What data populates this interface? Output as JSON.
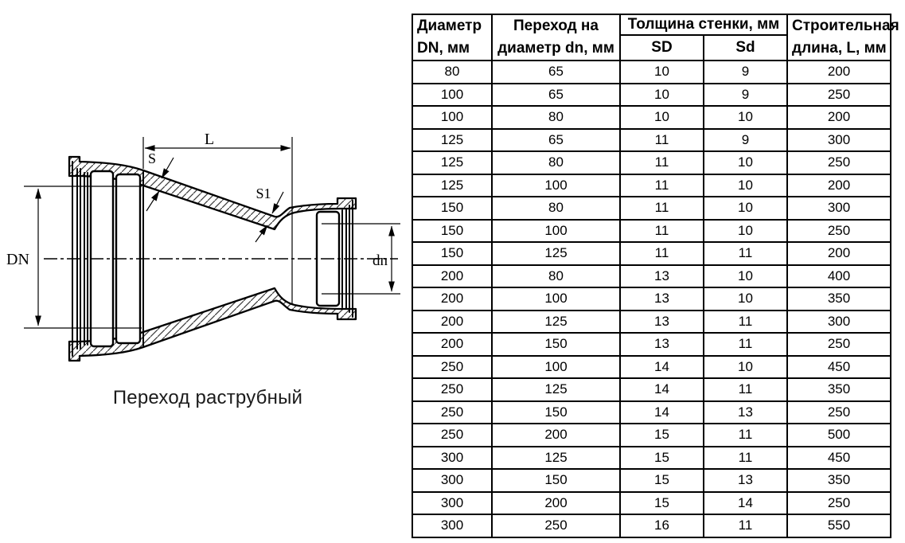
{
  "diagram": {
    "caption": "Переход раструбный",
    "labels": {
      "length": "L",
      "wall_thickness_DN_side": "S",
      "wall_thickness_dn_side": "S1",
      "diameter_large": "DN",
      "diameter_small": "dn"
    }
  },
  "table": {
    "headers": {
      "diameter_line1": "Диаметр",
      "diameter_line2": "DN, мм",
      "transition_line1": "Переход на",
      "transition_line2": "диаметр dn, мм",
      "wall_group": "Толщина стенки, мм",
      "wall_SD": "SD",
      "wall_Sd": "Sd",
      "length_line1": "Строительная",
      "length_line2": "длина, L, мм"
    },
    "rows": [
      [
        80,
        65,
        10,
        9,
        200
      ],
      [
        100,
        65,
        10,
        9,
        250
      ],
      [
        100,
        80,
        10,
        10,
        200
      ],
      [
        125,
        65,
        11,
        9,
        300
      ],
      [
        125,
        80,
        11,
        10,
        250
      ],
      [
        125,
        100,
        11,
        10,
        200
      ],
      [
        150,
        80,
        11,
        10,
        300
      ],
      [
        150,
        100,
        11,
        10,
        250
      ],
      [
        150,
        125,
        11,
        11,
        200
      ],
      [
        200,
        80,
        13,
        10,
        400
      ],
      [
        200,
        100,
        13,
        10,
        350
      ],
      [
        200,
        125,
        13,
        11,
        300
      ],
      [
        200,
        150,
        13,
        11,
        250
      ],
      [
        250,
        100,
        14,
        10,
        450
      ],
      [
        250,
        125,
        14,
        11,
        350
      ],
      [
        250,
        150,
        14,
        13,
        250
      ],
      [
        250,
        200,
        15,
        11,
        500
      ],
      [
        300,
        125,
        15,
        11,
        450
      ],
      [
        300,
        150,
        15,
        13,
        350
      ],
      [
        300,
        200,
        15,
        14,
        250
      ],
      [
        300,
        250,
        16,
        11,
        550
      ]
    ]
  },
  "colors": {
    "line": "#000000",
    "text": "#000000",
    "background": "#ffffff"
  }
}
